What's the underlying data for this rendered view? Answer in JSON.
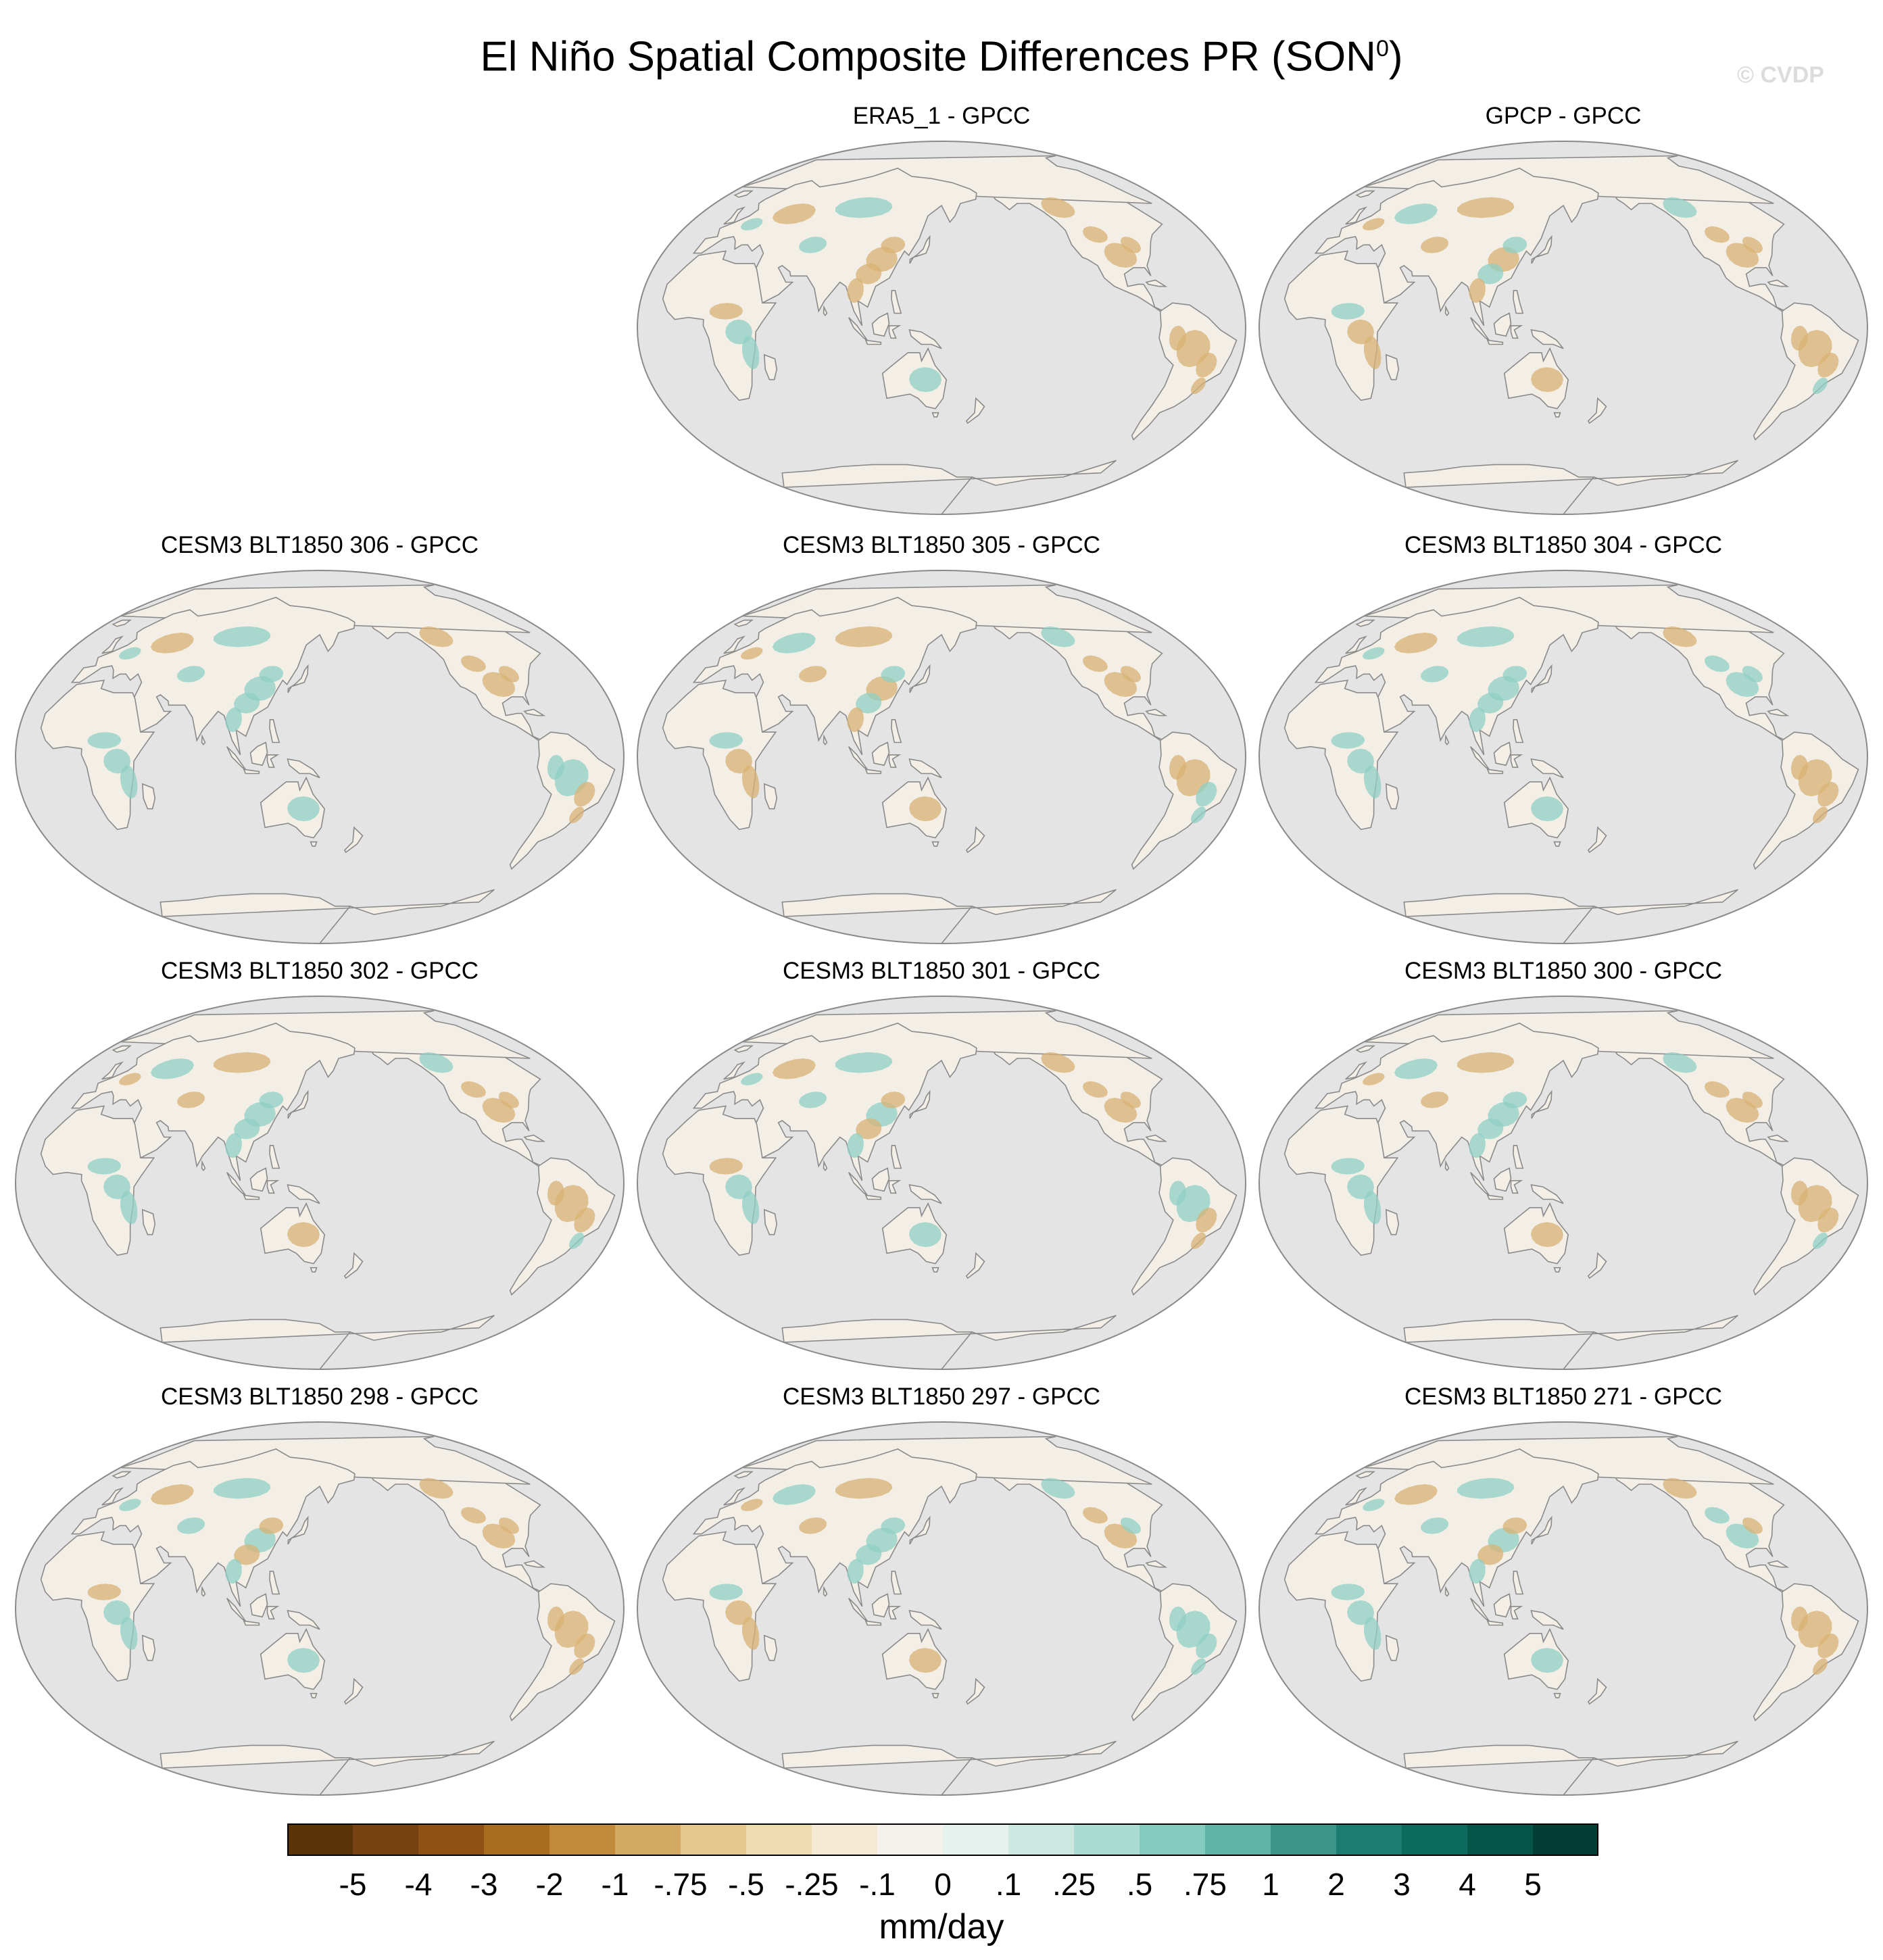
{
  "title": {
    "main": "El Niño Spatial Composite Differences PR (SON",
    "sup": "0",
    "close": ")"
  },
  "watermark": "© CVDP",
  "panels": [
    {
      "title": "ERA5_1 - GPCC",
      "sa": "dry",
      "ea": "dry",
      "af": "mix",
      "nam": "dry"
    },
    {
      "title": "GPCP - GPCC",
      "sa": "dry",
      "ea": "mix",
      "af": "mix",
      "nam": "dry"
    },
    {
      "title": "CESM3 BLT1850 306 - GPCC",
      "sa": "mix",
      "ea": "wet",
      "af": "wet",
      "nam": "dry"
    },
    {
      "title": "CESM3 BLT1850 305 - GPCC",
      "sa": "mix",
      "ea": "mix",
      "af": "mix",
      "nam": "dry"
    },
    {
      "title": "CESM3 BLT1850 304 - GPCC",
      "sa": "dry",
      "ea": "wet",
      "af": "wet",
      "nam": "wet"
    },
    {
      "title": "CESM3 BLT1850 302 - GPCC",
      "sa": "dry",
      "ea": "wet",
      "af": "wet",
      "nam": "dry"
    },
    {
      "title": "CESM3 BLT1850 301 - GPCC",
      "sa": "mix",
      "ea": "mix",
      "af": "mix",
      "nam": "dry"
    },
    {
      "title": "CESM3 BLT1850 300 - GPCC",
      "sa": "dry",
      "ea": "wet",
      "af": "wet",
      "nam": "dry"
    },
    {
      "title": "CESM3 BLT1850 298 - GPCC",
      "sa": "dry",
      "ea": "mix",
      "af": "mix",
      "nam": "dry"
    },
    {
      "title": "CESM3 BLT1850 297 - GPCC",
      "sa": "wet",
      "ea": "wet",
      "af": "mix",
      "nam": "mix"
    },
    {
      "title": "CESM3 BLT1850 271 - GPCC",
      "sa": "dry",
      "ea": "mix",
      "af": "wet",
      "nam": "mix"
    }
  ],
  "colorbar": {
    "units": "mm/day",
    "labels": [
      "-5",
      "-4",
      "-3",
      "-2",
      "-1",
      "-.75",
      "-.5",
      "-.25",
      "-.1",
      "0",
      ".1",
      ".25",
      ".5",
      ".75",
      "1",
      "2",
      "3",
      "4",
      "5"
    ],
    "colors": [
      "#5a3407",
      "#774211",
      "#8f5214",
      "#a96d22",
      "#c08a3a",
      "#d4aa62",
      "#e3c88e",
      "#eedcb0",
      "#f4e9d2",
      "#f5f2ec",
      "#e6f2ee",
      "#cbe8e1",
      "#aadcd3",
      "#84cbbe",
      "#5fb3a5",
      "#3b9589",
      "#1c7c72",
      "#0c6a5f",
      "#055549",
      "#023e34"
    ]
  },
  "colors": {
    "ocean": "#e4e4e4",
    "coast": "#8a8a8a",
    "dry": "#d8b274",
    "wet": "#8fcfc4",
    "neutral": "#f3efe6"
  }
}
